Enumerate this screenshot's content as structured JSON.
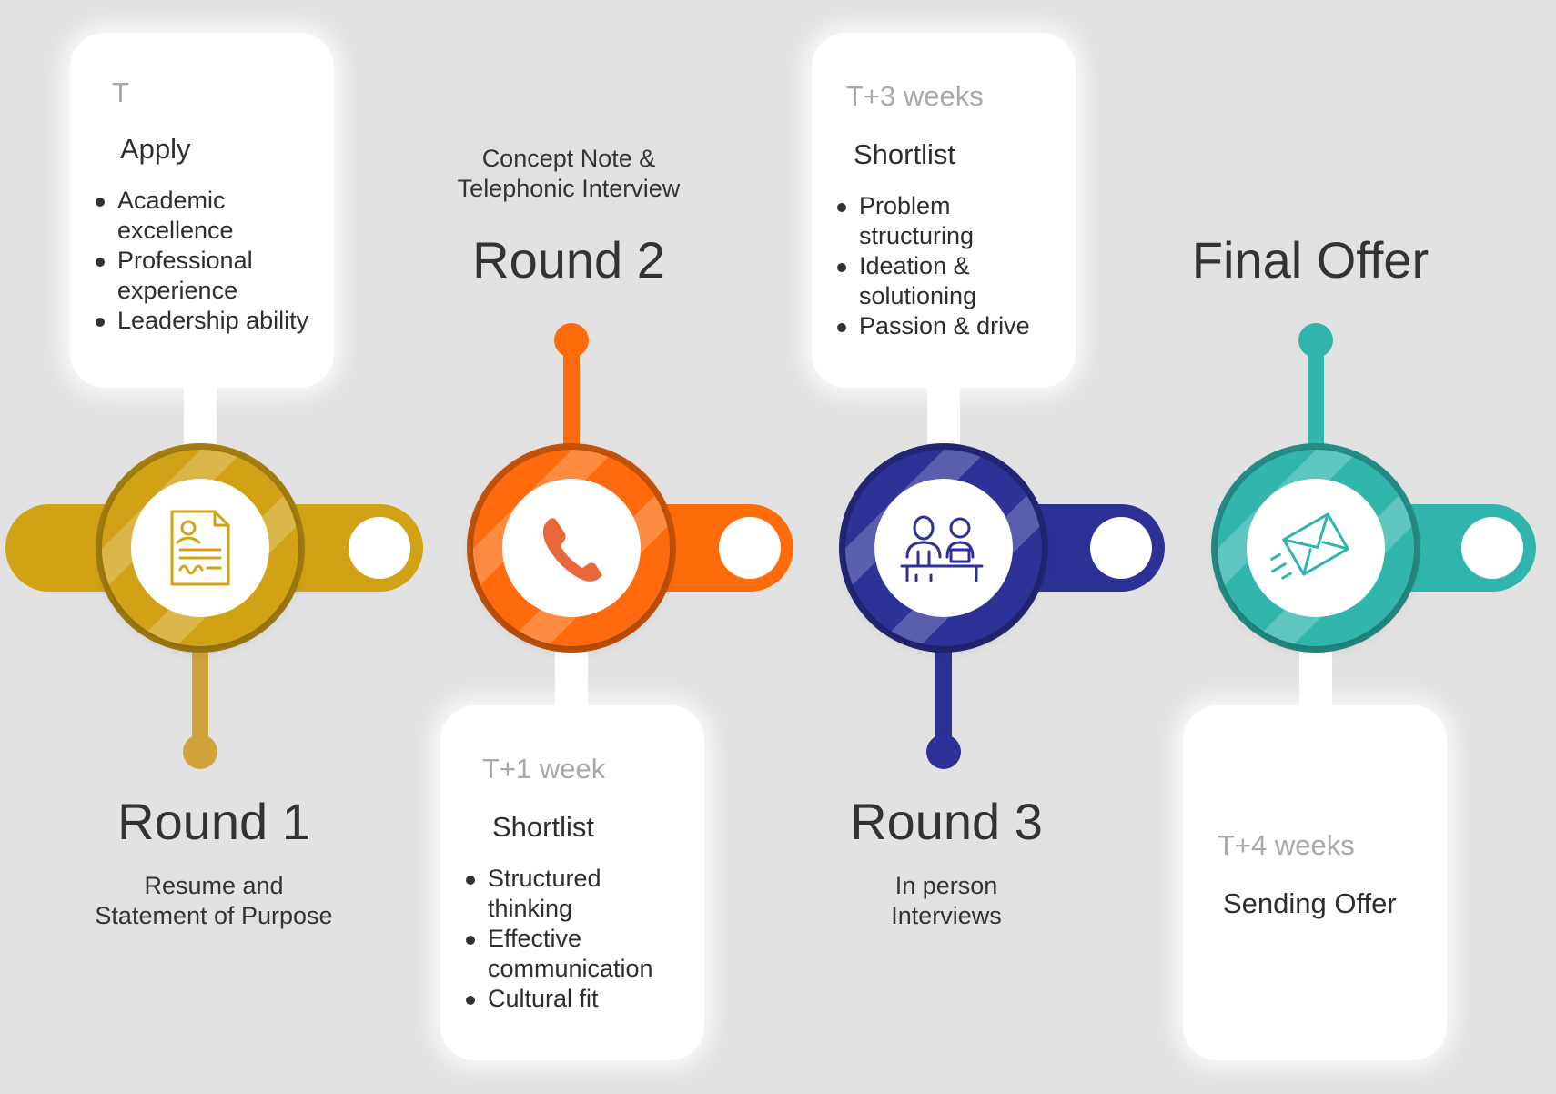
{
  "colors": {
    "background": "#e2e2e2",
    "stage1": "#d1a215",
    "stage2": "#fe6b0a",
    "stage3": "#2d3196",
    "stage4": "#30b5ad"
  },
  "stages": [
    {
      "key": "round1",
      "icon": "resume-document-icon",
      "round_title": "Round 1",
      "round_subtitle_lines": [
        "Resume and",
        "Statement of Purpose"
      ],
      "card": {
        "time": "T",
        "title": "Apply",
        "bullets": [
          "Academic excellence",
          "Professional experience",
          "Leadership ability"
        ]
      }
    },
    {
      "key": "round2",
      "icon": "phone-icon",
      "round_title": "Round 2",
      "round_subtitle_lines": [
        "Concept Note &",
        "Telephonic Interview"
      ],
      "card": {
        "time": "T+1 week",
        "title": "Shortlist",
        "bullets": [
          "Structured thinking",
          "Effective communication",
          "Cultural fit"
        ]
      }
    },
    {
      "key": "round3",
      "icon": "interview-people-icon",
      "round_title": "Round 3",
      "round_subtitle_lines": [
        "In person",
        "Interviews"
      ],
      "card": {
        "time": "T+3 weeks",
        "title": "Shortlist",
        "bullets": [
          "Problem structuring",
          "Ideation & solutioning",
          "Passion & drive"
        ]
      }
    },
    {
      "key": "final",
      "icon": "envelope-send-icon",
      "round_title": "Final Offer",
      "round_subtitle_lines": [],
      "card": {
        "time": "T+4 weeks",
        "title": "Sending Offer",
        "bullets": []
      }
    }
  ]
}
